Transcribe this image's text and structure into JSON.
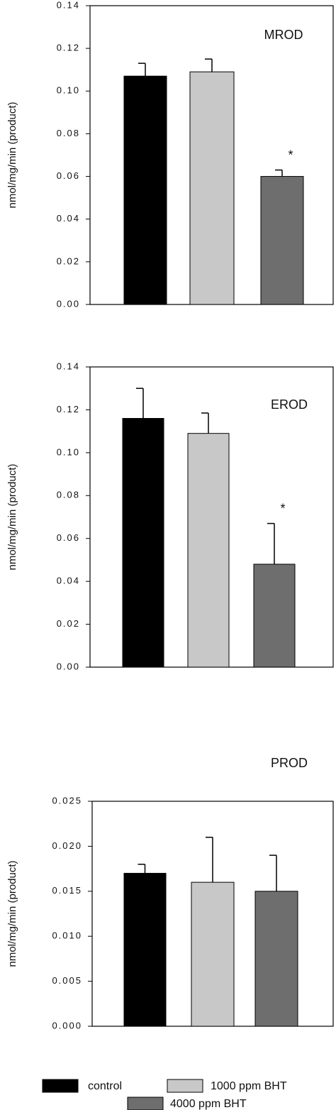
{
  "chart_data": [
    {
      "type": "bar",
      "title": "MROD",
      "ylabel": "nmol/mg/min (product)",
      "values": [
        0.107,
        0.109,
        0.06
      ],
      "errors": [
        0.006,
        0.006,
        0.003
      ],
      "starred": [
        false,
        false,
        true
      ],
      "star": "*",
      "ylim": [
        0,
        0.14
      ],
      "yticks": [
        {
          "value": 0,
          "label": "0.00"
        },
        0.02,
        0.04,
        0.06,
        0.08,
        {
          "value": 0.1,
          "label": "0.10"
        },
        0.12,
        0.14
      ]
    },
    {
      "type": "bar",
      "title": "EROD",
      "ylabel": "nmol/mg/min (product)",
      "values": [
        0.116,
        0.109,
        0.048
      ],
      "errors": [
        0.014,
        0.0095,
        0.019
      ],
      "starred": [
        false,
        false,
        true
      ],
      "star": "*",
      "ylim": [
        0,
        0.14
      ],
      "yticks": [
        {
          "value": 0,
          "label": "0.00"
        },
        0.02,
        0.04,
        0.06,
        0.08,
        {
          "value": 0.1,
          "label": "0.10"
        },
        0.12,
        0.14
      ]
    },
    {
      "type": "bar",
      "title": "PROD",
      "ylabel": "nmol/mg/min (product)",
      "values": [
        0.017,
        0.016,
        0.015
      ],
      "errors": [
        0.001,
        0.005,
        0.004
      ],
      "ylim": [
        0,
        0.025
      ],
      "yticks": [
        {
          "value": 0,
          "label": "0.000"
        },
        0.005,
        {
          "value": 0.01,
          "label": "0.010"
        },
        0.015,
        {
          "value": 0.02,
          "label": "0.020"
        },
        0.025
      ]
    }
  ],
  "legend": [
    {
      "name": "control",
      "color": "#000000"
    },
    {
      "name": "1000 ppm BHT",
      "color": "#c8c8c8"
    },
    {
      "name": "4000 ppm BHT",
      "color": "#6e6e6e"
    }
  ]
}
